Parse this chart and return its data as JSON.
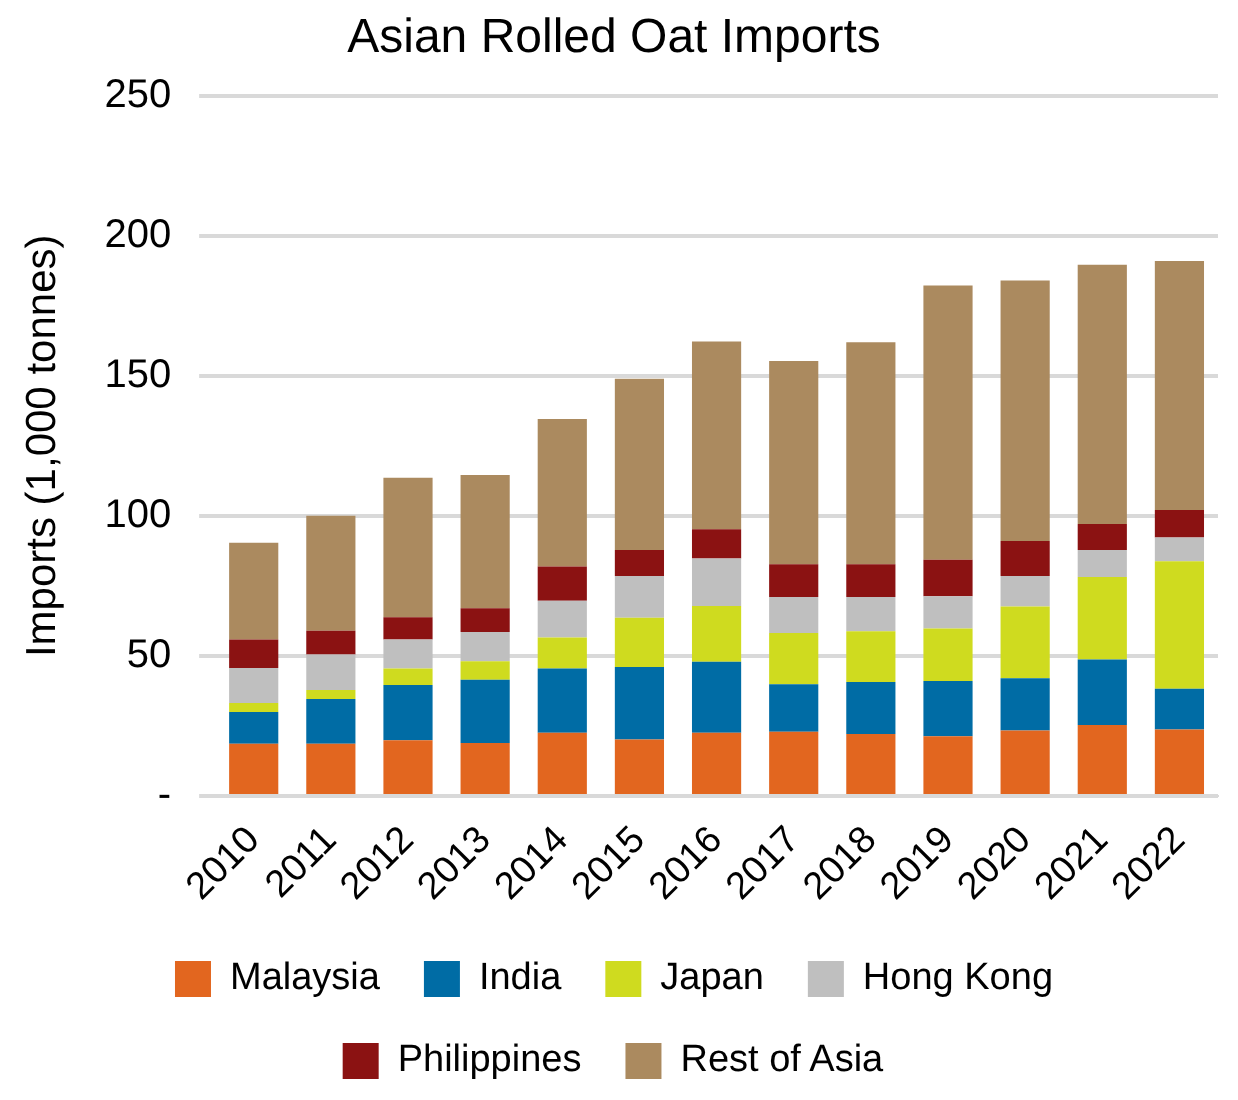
{
  "chart_data": {
    "type": "bar",
    "title": "Asian Rolled Oat Imports",
    "ylabel": "Imports (1,000 tonnes)",
    "stacked": true,
    "grid": "y",
    "legend": "bottom",
    "categories": [
      "2010",
      "2011",
      "2012",
      "2013",
      "2014",
      "2015",
      "2016",
      "2017",
      "2018",
      "2019",
      "2020",
      "2021",
      "2022"
    ],
    "ylim": [
      0,
      250
    ],
    "yticks": [
      {
        "value": 0,
        "label": "-"
      },
      50,
      100,
      150,
      200,
      250
    ],
    "series": [
      {
        "name": "Malaysia",
        "color": "#e2661f",
        "values": [
          18.6,
          18.6,
          19.9,
          18.9,
          22.6,
          20.2,
          22.6,
          22.9,
          22.1,
          21.3,
          23.4,
          25.3,
          23.7
        ]
      },
      {
        "name": "India",
        "color": "#006ca5",
        "values": [
          11.4,
          16,
          19.7,
          22.6,
          22.9,
          25.8,
          25.3,
          17,
          18.6,
          19.7,
          18.6,
          23.4,
          14.6
        ]
      },
      {
        "name": "Japan",
        "color": "#cfdb1f",
        "values": [
          3.2,
          3.2,
          5.9,
          6.6,
          11.1,
          17.6,
          19.9,
          18.3,
          18.1,
          18.8,
          25.6,
          29.5,
          45.5
        ]
      },
      {
        "name": "Hong Kong",
        "color": "#bfbfbf",
        "values": [
          12.5,
          12.7,
          10.4,
          10.4,
          13.1,
          14.9,
          17,
          12.8,
          12.2,
          11.5,
          10.9,
          9.6,
          8.5
        ]
      },
      {
        "name": "Philippines",
        "color": "#8b1212",
        "values": [
          10.2,
          8.5,
          7.9,
          8.5,
          12.2,
          9.3,
          10.4,
          11.7,
          11.7,
          13,
          12.5,
          9.3,
          9.8
        ]
      },
      {
        "name": "Rest of Asia",
        "color": "#ab8a5f",
        "values": [
          34.5,
          41,
          49.8,
          47.6,
          52.7,
          61.1,
          67,
          72.6,
          79.3,
          97.9,
          93,
          92.5,
          88.9
        ]
      }
    ]
  }
}
